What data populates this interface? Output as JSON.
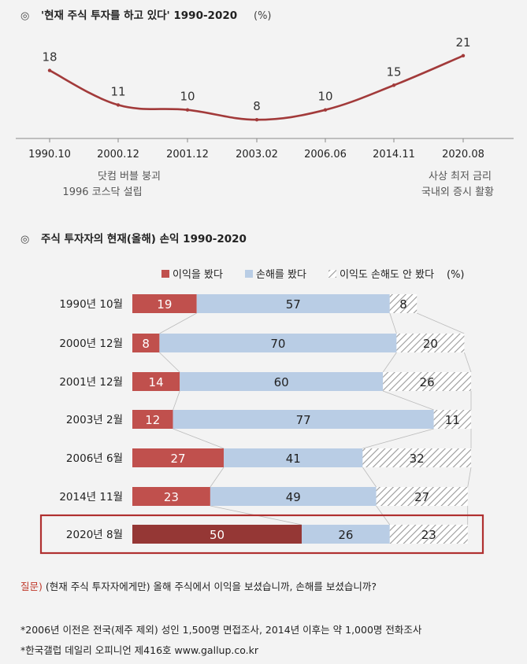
{
  "section1": {
    "bullet": "◎",
    "title": "'현재 주식 투자를 하고 있다' 1990-2020",
    "unit": "(%)"
  },
  "section2": {
    "bullet": "◎",
    "title": "주식 투자자의 현재(올해) 손익 1990-2020"
  },
  "colors": {
    "line": "#a23a3a",
    "profit": "#c0504d",
    "profit_highlight": "#953735",
    "loss": "#b9cde5",
    "neither_hatch": "#9a9a9a",
    "highlight_border": "#b03030",
    "question": "#c0392b"
  },
  "notes": {
    "left_1": "닷컴 버블 붕괴",
    "left_2": "1996 코스닥 설립",
    "right_1": "사상 최저 금리",
    "right_2": "국내외 증시 활황"
  },
  "footer": {
    "question_label": "질문)",
    "question_text": " (현재 주식 투자자에게만) 올해 주식에서 이익을 보셨습니까, 손해를 보셨습니까?",
    "note1": "*2006년 이전은 전국(제주 제외) 성인 1,500명 면접조사, 2014년 이후는 약 1,000명 전화조사",
    "note2": "*한국갤럽 데일리 오피니언 제416호 www.gallup.co.kr"
  },
  "chart_data": [
    {
      "type": "line",
      "title": "'현재 주식 투자를 하고 있다' 1990-2020 (%)",
      "x": [
        "1990.10",
        "2000.12",
        "2001.12",
        "2003.02",
        "2006.06",
        "2014.11",
        "2020.08"
      ],
      "values": [
        18,
        11,
        10,
        8,
        10,
        15,
        21
      ],
      "ylim": [
        5,
        24
      ],
      "grid": false
    },
    {
      "type": "bar",
      "stacked": true,
      "orientation": "horizontal",
      "title": "주식 투자자의 현재(올해) 손익 1990-2020",
      "legend_suffix": "(%)",
      "categories": [
        "1990년 10월",
        "2000년 12월",
        "2001년 12월",
        "2003년 2월",
        "2006년 6월",
        "2014년 11월",
        "2020년 8월"
      ],
      "series": [
        {
          "name": "이익을 봤다",
          "values": [
            19,
            8,
            14,
            12,
            27,
            23,
            50
          ]
        },
        {
          "name": "손해를 봤다",
          "values": [
            57,
            70,
            60,
            77,
            41,
            49,
            26
          ]
        },
        {
          "name": "이익도 손해도 안 봤다",
          "values": [
            8,
            20,
            26,
            11,
            32,
            27,
            23
          ]
        }
      ],
      "highlight_category": "2020년 8월"
    }
  ]
}
